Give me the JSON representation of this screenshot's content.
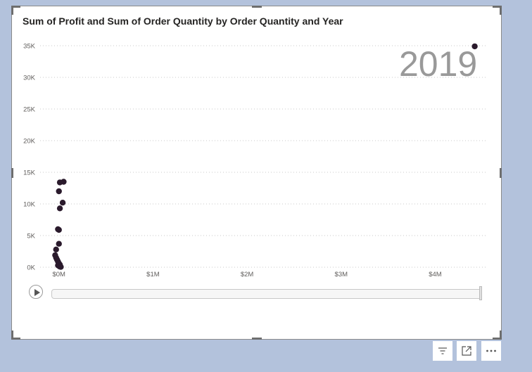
{
  "chart_data": {
    "type": "scatter",
    "title": "Sum of Profit and Sum of Order Quantity by Order Quantity and Year",
    "xlabel": "",
    "ylabel": "",
    "xlim": [
      -0.2,
      4.55
    ],
    "ylim": [
      0,
      36000
    ],
    "x_ticks": [
      0,
      1,
      2,
      3,
      4
    ],
    "x_tick_labels": [
      "$0M",
      "$1M",
      "$2M",
      "$3M",
      "$4M"
    ],
    "y_ticks": [
      0,
      5000,
      10000,
      15000,
      20000,
      25000,
      30000,
      35000
    ],
    "y_tick_labels": [
      "0K",
      "5K",
      "10K",
      "15K",
      "20K",
      "25K",
      "30K",
      "35K"
    ],
    "grid": true,
    "play_axis_value": "2019",
    "marker_color": "#2a1a2c",
    "series": [
      {
        "points": [
          {
            "x": 0.01,
            "y": 13400
          },
          {
            "x": 0.05,
            "y": 13500
          },
          {
            "x": 0.0,
            "y": 12000
          },
          {
            "x": 0.04,
            "y": 10200
          },
          {
            "x": 0.01,
            "y": 9300
          },
          {
            "x": 0.0,
            "y": 5900
          },
          {
            "x": -0.01,
            "y": 6000
          },
          {
            "x": 0.0,
            "y": 3700
          },
          {
            "x": -0.03,
            "y": 2800
          },
          {
            "x": -0.04,
            "y": 1900
          },
          {
            "x": -0.03,
            "y": 1500
          },
          {
            "x": -0.02,
            "y": 1200
          },
          {
            "x": -0.01,
            "y": 900
          },
          {
            "x": 0.0,
            "y": 600
          },
          {
            "x": 0.01,
            "y": 400
          },
          {
            "x": 0.0,
            "y": 200
          },
          {
            "x": 0.01,
            "y": 100
          },
          {
            "x": 0.02,
            "y": 50
          },
          {
            "x": -0.01,
            "y": 300
          },
          {
            "x": 4.42,
            "y": 34900
          }
        ]
      }
    ]
  },
  "footer": {
    "filter_icon": "filter-icon",
    "focus_icon": "focus-mode-icon",
    "more_icon": "more-options-icon"
  }
}
